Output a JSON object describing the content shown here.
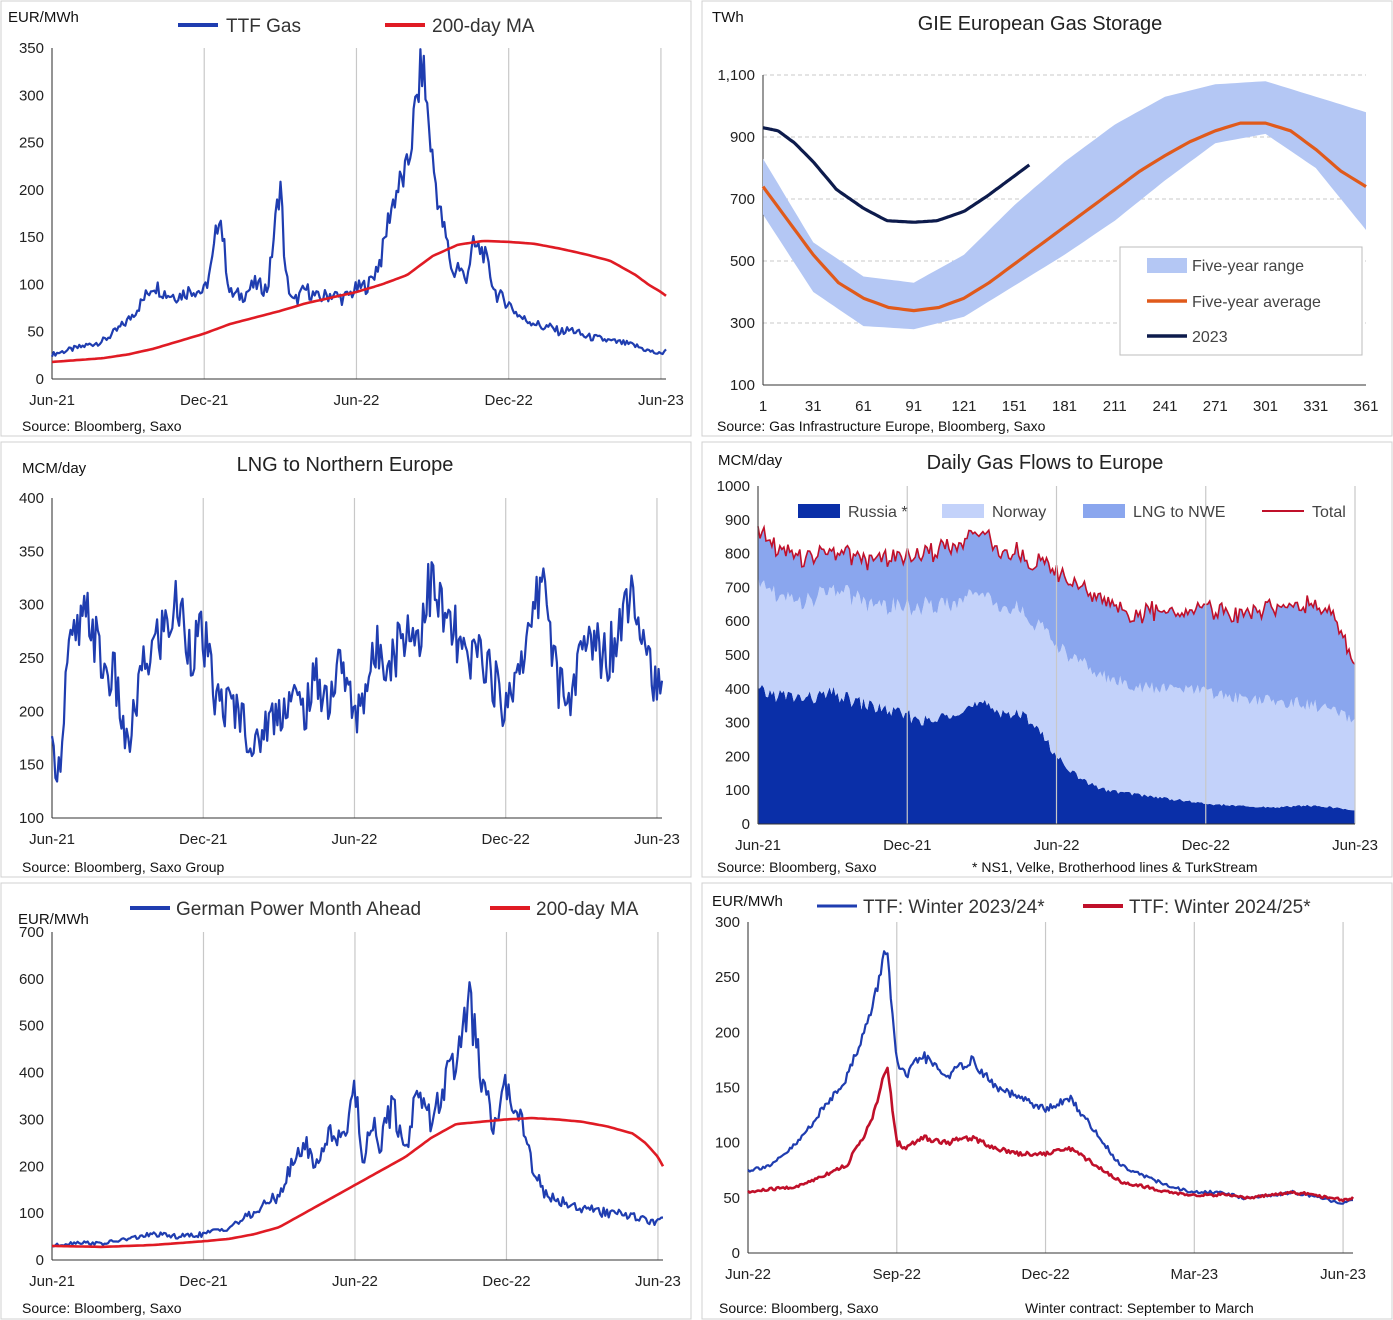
{
  "chart_data": [
    {
      "type": "line",
      "id": "c1",
      "unit_label": "EUR/MWh",
      "title": "",
      "source": "Source: Bloomberg, Saxo",
      "x_ticks": [
        "Jun-21",
        "Dec-21",
        "Jun-22",
        "Dec-22",
        "Jun-23"
      ],
      "x_range": [
        0,
        24.2
      ],
      "y_ticks": [
        "0",
        "50",
        "100",
        "150",
        "200",
        "250",
        "300",
        "350"
      ],
      "ylim": [
        0,
        350
      ],
      "grid": "vertical",
      "legend": "top",
      "series": [
        {
          "name": "TTF Gas",
          "color": "#1f3db0",
          "x": [
            0,
            1,
            2,
            2.5,
            3,
            3.5,
            4,
            4.5,
            5,
            5.5,
            6,
            6.3,
            6.6,
            7,
            7.5,
            8,
            8.5,
            9,
            9.2,
            9.5,
            10,
            10.5,
            11,
            11.5,
            12,
            12.5,
            13,
            13.3,
            13.6,
            14,
            14.3,
            14.6,
            15,
            15.3,
            15.6,
            15.8,
            16,
            16.3,
            16.6,
            17,
            17.5,
            18,
            18.3,
            18.6,
            19,
            19.3,
            19.6,
            20,
            20.5,
            21,
            21.5,
            22,
            22.5,
            23,
            23.5,
            24,
            24.2
          ],
          "y": [
            26,
            33,
            40,
            50,
            62,
            80,
            100,
            90,
            88,
            95,
            92,
            120,
            180,
            90,
            88,
            100,
            95,
            210,
            110,
            80,
            95,
            85,
            90,
            85,
            95,
            100,
            130,
            175,
            200,
            220,
            280,
            335,
            230,
            175,
            140,
            110,
            120,
            105,
            140,
            135,
            90,
            80,
            70,
            63,
            60,
            55,
            55,
            50,
            52,
            45,
            43,
            40,
            38,
            35,
            30,
            26,
            32
          ]
        },
        {
          "name": "200-day MA",
          "color": "#e01b24",
          "x": [
            0,
            2,
            3,
            4,
            5,
            6,
            7,
            8,
            9,
            10,
            11,
            12,
            13,
            14,
            15,
            16,
            17,
            18,
            19,
            20,
            21,
            22,
            23,
            23.5,
            24,
            24.2
          ],
          "y": [
            18,
            22,
            26,
            32,
            40,
            48,
            58,
            65,
            72,
            80,
            86,
            92,
            100,
            110,
            130,
            142,
            146,
            145,
            143,
            138,
            132,
            125,
            110,
            100,
            92,
            88
          ]
        }
      ]
    },
    {
      "type": "area",
      "id": "c2",
      "unit_label": "TWh",
      "title": "GIE European Gas Storage",
      "source": "Source: Gas Infrastructure Europe, Bloomberg, Saxo",
      "x_ticks": [
        "1",
        "31",
        "61",
        "91",
        "121",
        "151",
        "181",
        "211",
        "241",
        "271",
        "301",
        "331",
        "361"
      ],
      "x_tick_values": [
        1,
        31,
        61,
        91,
        121,
        151,
        181,
        211,
        241,
        271,
        301,
        331,
        361
      ],
      "xlim": [
        1,
        361
      ],
      "y_ticks": [
        "100",
        "300",
        "500",
        "700",
        "900",
        "1,100"
      ],
      "ylim": [
        100,
        1100
      ],
      "grid": "horizontal-dashed",
      "legend": "bottom-right",
      "legend_entries": [
        "Five-year range",
        "Five-year average",
        "2023"
      ],
      "range_color": "#b4c7f4",
      "range": {
        "x": [
          1,
          31,
          61,
          91,
          121,
          151,
          181,
          211,
          241,
          271,
          301,
          331,
          361
        ],
        "low": [
          650,
          400,
          290,
          280,
          320,
          420,
          520,
          630,
          760,
          880,
          910,
          800,
          600
        ],
        "high": [
          830,
          560,
          450,
          430,
          520,
          680,
          820,
          940,
          1030,
          1070,
          1080,
          1030,
          980
        ]
      },
      "series": [
        {
          "name": "Five-year average",
          "color": "#e05a1b",
          "x": [
            1,
            16,
            31,
            46,
            61,
            76,
            91,
            106,
            121,
            136,
            151,
            166,
            181,
            196,
            211,
            226,
            241,
            256,
            271,
            286,
            301,
            316,
            331,
            346,
            361
          ],
          "y": [
            740,
            630,
            520,
            430,
            380,
            350,
            340,
            350,
            380,
            430,
            490,
            550,
            610,
            670,
            730,
            790,
            840,
            885,
            920,
            945,
            945,
            920,
            860,
            790,
            740
          ]
        },
        {
          "name": "2023",
          "color": "#0d1b4c",
          "x": [
            1,
            10,
            20,
            31,
            45,
            61,
            75,
            91,
            105,
            121,
            135,
            150,
            160
          ],
          "y": [
            930,
            920,
            880,
            820,
            730,
            670,
            630,
            625,
            630,
            660,
            710,
            770,
            810
          ]
        }
      ]
    },
    {
      "type": "line",
      "id": "c3",
      "unit_label": "MCM/day",
      "title": "LNG to Northern Europe",
      "source": "Source: Bloomberg, Saxo Group",
      "x_ticks": [
        "Jun-21",
        "Dec-21",
        "Jun-22",
        "Dec-22",
        "Jun-23"
      ],
      "x_range": [
        0,
        24.2
      ],
      "y_ticks": [
        "100",
        "150",
        "200",
        "250",
        "300",
        "350",
        "400"
      ],
      "ylim": [
        100,
        400
      ],
      "grid": "vertical",
      "series": [
        {
          "name": "LNG to Northern Europe",
          "color": "#1f3db0",
          "x": [
            0,
            0.3,
            0.6,
            1,
            1.5,
            2,
            2.5,
            3,
            3.5,
            4,
            4.5,
            5,
            5.5,
            6,
            6.5,
            7,
            7.5,
            8,
            8.5,
            9,
            9.5,
            10,
            10.5,
            11,
            11.5,
            12,
            12.5,
            13,
            13.5,
            14,
            14.5,
            15,
            15.5,
            16,
            16.5,
            17,
            17.5,
            18,
            18.5,
            19,
            19.5,
            20,
            20.5,
            21,
            21.5,
            22,
            22.5,
            23,
            23.5,
            24,
            24.2
          ],
          "y": [
            160,
            145,
            250,
            270,
            290,
            240,
            230,
            160,
            230,
            260,
            280,
            300,
            260,
            270,
            210,
            205,
            200,
            160,
            190,
            200,
            215,
            200,
            230,
            210,
            250,
            190,
            230,
            260,
            250,
            280,
            270,
            320,
            290,
            270,
            240,
            260,
            230,
            200,
            250,
            270,
            340,
            230,
            210,
            250,
            270,
            250,
            280,
            330,
            270,
            220,
            210
          ]
        }
      ]
    },
    {
      "type": "area",
      "id": "c4",
      "unit_label": "MCM/day",
      "title": "Daily Gas Flows to Europe",
      "source": "Source:  Bloomberg, Saxo",
      "note": "* NS1, Velke, Brotherhood lines & TurkStream",
      "x_ticks": [
        "Jun-21",
        "Dec-21",
        "Jun-22",
        "Dec-22",
        "Jun-23"
      ],
      "x_range": [
        0,
        24
      ],
      "y_ticks": [
        "0",
        "100",
        "200",
        "300",
        "400",
        "500",
        "600",
        "700",
        "800",
        "900",
        "1000"
      ],
      "ylim": [
        0,
        1000
      ],
      "grid": "vertical",
      "legend": "top",
      "series": [
        {
          "name": "Russia *",
          "color": "#0a2fa8",
          "x": [
            0,
            1,
            2,
            3,
            4,
            5,
            6,
            7,
            8,
            9,
            10,
            11,
            12,
            13,
            14,
            15,
            16,
            17,
            18,
            19,
            20,
            21,
            22,
            23,
            24
          ],
          "y": [
            390,
            380,
            370,
            385,
            360,
            340,
            320,
            300,
            340,
            350,
            330,
            310,
            200,
            130,
            100,
            90,
            80,
            70,
            60,
            55,
            50,
            50,
            55,
            50,
            40
          ]
        },
        {
          "name": "Norway",
          "color": "#c3d2fa",
          "x": [
            0,
            1,
            2,
            3,
            4,
            5,
            6,
            7,
            8,
            9,
            10,
            11,
            12,
            13,
            14,
            15,
            16,
            17,
            18,
            19,
            20,
            21,
            22,
            23,
            24
          ],
          "y": [
            320,
            280,
            290,
            300,
            310,
            300,
            320,
            340,
            330,
            320,
            310,
            300,
            330,
            340,
            330,
            320,
            320,
            330,
            330,
            320,
            320,
            310,
            300,
            290,
            260
          ]
        },
        {
          "name": "LNG to NWE",
          "color": "#8aa6ee",
          "x": [
            0,
            1,
            2,
            3,
            4,
            5,
            6,
            7,
            8,
            9,
            10,
            11,
            12,
            13,
            14,
            15,
            16,
            17,
            18,
            19,
            20,
            21,
            22,
            23,
            24
          ],
          "y": [
            150,
            140,
            130,
            110,
            120,
            140,
            150,
            160,
            170,
            180,
            160,
            170,
            220,
            220,
            230,
            210,
            230,
            220,
            250,
            240,
            260,
            280,
            300,
            290,
            170
          ]
        },
        {
          "name": "Total",
          "color": "#c0102a",
          "kind": "line"
        }
      ]
    },
    {
      "type": "line",
      "id": "c5",
      "unit_label": "EUR/MWh",
      "title": "",
      "source": "Source: Bloomberg, Saxo",
      "x_ticks": [
        "Jun-21",
        "Dec-21",
        "Jun-22",
        "Dec-22",
        "Jun-23"
      ],
      "x_range": [
        0,
        24.2
      ],
      "y_ticks": [
        "0",
        "100",
        "200",
        "300",
        "400",
        "500",
        "600",
        "700"
      ],
      "ylim": [
        0,
        700
      ],
      "grid": "vertical",
      "legend": "top",
      "series": [
        {
          "name": "German Power Month Ahead",
          "color": "#1f3db0",
          "x": [
            0,
            1,
            2,
            3,
            4,
            5,
            6,
            7,
            8,
            9,
            9.5,
            10,
            10.5,
            11,
            11.5,
            12,
            12.3,
            12.6,
            13,
            13.5,
            14,
            14.5,
            15,
            15.5,
            16,
            16.5,
            17,
            17.5,
            18,
            18.5,
            19,
            19.5,
            20,
            20.5,
            21,
            22,
            23,
            23.5,
            24,
            24.2
          ],
          "y": [
            30,
            38,
            35,
            45,
            55,
            50,
            55,
            70,
            100,
            140,
            200,
            250,
            200,
            280,
            250,
            380,
            200,
            300,
            250,
            330,
            230,
            380,
            290,
            370,
            420,
            560,
            390,
            280,
            370,
            320,
            210,
            140,
            130,
            120,
            110,
            100,
            95,
            85,
            80,
            95
          ]
        },
        {
          "name": "200-day MA",
          "color": "#e01b24",
          "x": [
            0,
            2,
            4,
            6,
            7,
            8,
            9,
            10,
            11,
            12,
            13,
            14,
            15,
            16,
            17,
            18,
            19,
            20,
            21,
            22,
            23,
            23.5,
            24,
            24.2
          ],
          "y": [
            30,
            28,
            32,
            40,
            45,
            55,
            70,
            100,
            130,
            160,
            190,
            220,
            260,
            290,
            295,
            300,
            303,
            300,
            295,
            285,
            270,
            250,
            220,
            200
          ]
        }
      ]
    },
    {
      "type": "line",
      "id": "c6",
      "unit_label": "EUR/MWh",
      "title": "",
      "source": "Source: Bloomberg, Saxo",
      "note": "Winter contract: September to March",
      "x_ticks": [
        "Jun-22",
        "Sep-22",
        "Dec-22",
        "Mar-23",
        "Jun-23"
      ],
      "x_range": [
        0,
        12.2
      ],
      "y_ticks": [
        "0",
        "50",
        "100",
        "150",
        "200",
        "250",
        "300"
      ],
      "ylim": [
        0,
        300
      ],
      "grid": "vertical",
      "legend": "top",
      "series": [
        {
          "name": "TTF: Winter 2023/24*",
          "color": "#1f3db0",
          "x": [
            0,
            0.5,
            1,
            1.5,
            2,
            2.5,
            2.8,
            3,
            3.2,
            3.5,
            4,
            4.5,
            5,
            5.5,
            6,
            6.5,
            7,
            7.5,
            8,
            8.5,
            9,
            9.5,
            10,
            10.5,
            11,
            11.5,
            12,
            12.2
          ],
          "y": [
            75,
            80,
            100,
            130,
            160,
            220,
            280,
            170,
            160,
            180,
            160,
            175,
            150,
            140,
            130,
            140,
            110,
            80,
            70,
            60,
            55,
            55,
            50,
            52,
            55,
            50,
            45,
            48
          ]
        },
        {
          "name": "TTF: Winter 2024/25*",
          "color": "#c0102a",
          "x": [
            0,
            0.5,
            1,
            1.5,
            2,
            2.5,
            2.8,
            3,
            3.2,
            3.5,
            4,
            4.5,
            5,
            5.5,
            6,
            6.5,
            7,
            7.5,
            8,
            8.5,
            9,
            9.5,
            10,
            10.5,
            11,
            11.5,
            12,
            12.2
          ],
          "y": [
            55,
            58,
            60,
            70,
            80,
            120,
            170,
            100,
            95,
            105,
            100,
            105,
            95,
            90,
            90,
            95,
            80,
            65,
            60,
            55,
            52,
            53,
            50,
            52,
            55,
            52,
            48,
            50
          ]
        }
      ]
    }
  ]
}
